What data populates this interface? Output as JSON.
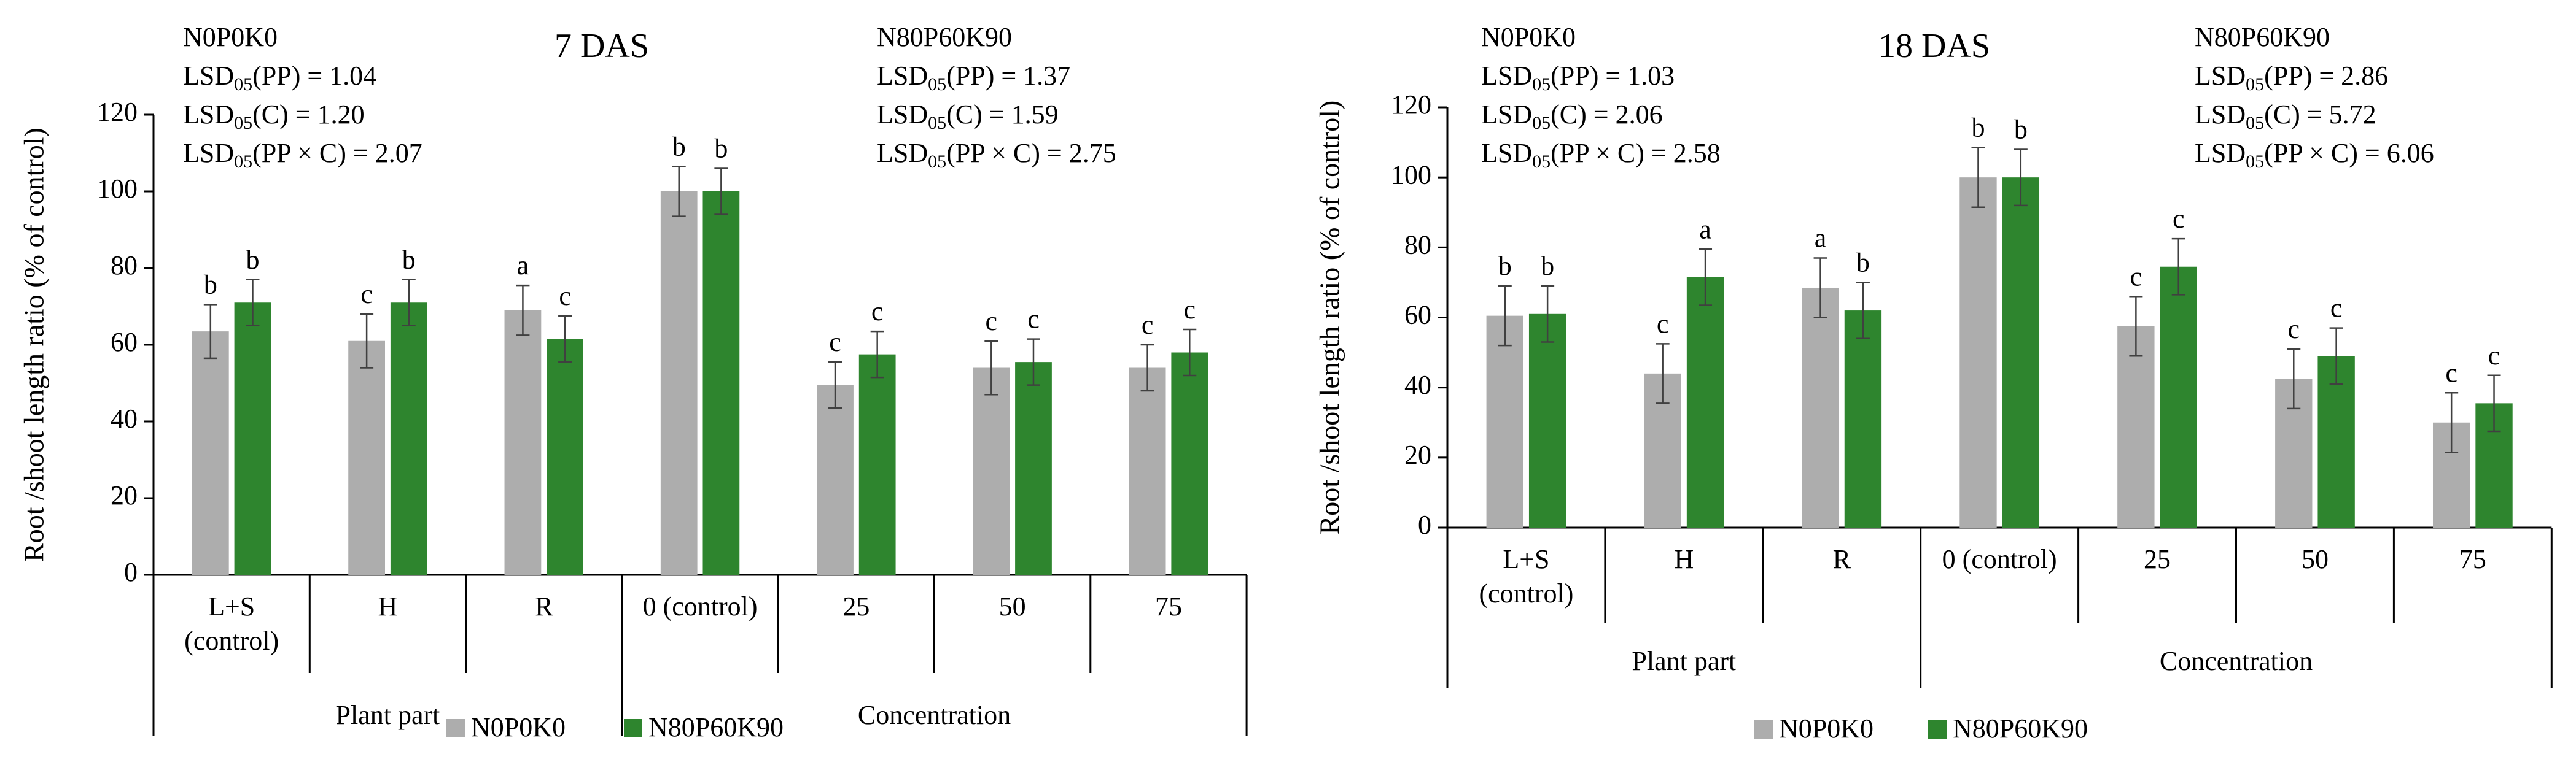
{
  "colors": {
    "series1": "#ADADAD",
    "series2": "#2E852E",
    "axis": "#000000",
    "error": "#404040"
  },
  "chart_data": [
    {
      "type": "bar",
      "title": "7 DAS",
      "xlabel": "",
      "ylabel": "Root /shoot length ratio (% of control)",
      "ylim": [
        0,
        120
      ],
      "yticks": [
        "0",
        "20",
        "40",
        "60",
        "80",
        "100",
        "120"
      ],
      "categories": [
        "L+S (control)",
        "H",
        "R",
        "0 (control)",
        "25",
        "50",
        "75"
      ],
      "groups": [
        {
          "label": "Plant part",
          "count": 3
        },
        {
          "label": "Concentration",
          "count": 4
        }
      ],
      "series": [
        {
          "name": "N0P0K0",
          "values": [
            63.5,
            61,
            69,
            100,
            49.5,
            54,
            54
          ],
          "errors": [
            7,
            7,
            6.5,
            6.5,
            6,
            7,
            6
          ],
          "letters": [
            "b",
            "c",
            "a",
            "b",
            "c",
            "c",
            "c"
          ]
        },
        {
          "name": "N80P60K90",
          "values": [
            71,
            71,
            61.5,
            100,
            57.5,
            55.5,
            58
          ],
          "errors": [
            6,
            6,
            6,
            6,
            6,
            6,
            6
          ],
          "letters": [
            "b",
            "b",
            "c",
            "b",
            "c",
            "c",
            "c"
          ]
        }
      ],
      "annotations": {
        "left": {
          "title": "N0P0K0",
          "lines": [
            [
              "LSD",
              "05",
              "(PP) = 1.04"
            ],
            [
              "LSD",
              "05",
              "(C) = 1.20"
            ],
            [
              "LSD",
              "05",
              "(PP × C) = 2.07"
            ]
          ]
        },
        "right": {
          "title": "N80P60K90",
          "lines": [
            [
              "LSD",
              "05",
              "(PP) = 1.37"
            ],
            [
              "LSD",
              "05",
              "(C) = 1.59"
            ],
            [
              "LSD",
              "05",
              "(PP × C) = 2.75"
            ]
          ]
        }
      },
      "legend": "bottom"
    },
    {
      "type": "bar",
      "title": "18 DAS",
      "xlabel": "",
      "ylabel": "Root /shoot length ratio (% of control)",
      "ylim": [
        0,
        120
      ],
      "yticks": [
        "0",
        "20",
        "40",
        "60",
        "80",
        "100",
        "120"
      ],
      "categories": [
        "L+S (control)",
        "H",
        "R",
        "0 (control)",
        "25",
        "50",
        "75"
      ],
      "groups": [
        {
          "label": "Plant part",
          "count": 3
        },
        {
          "label": "Concentration",
          "count": 4
        }
      ],
      "series": [
        {
          "name": "N0P0K0",
          "values": [
            60.5,
            44,
            68.5,
            100,
            57.5,
            42.5,
            30
          ],
          "errors": [
            8.5,
            8.5,
            8.5,
            8.5,
            8.5,
            8.5,
            8.5
          ],
          "letters": [
            "b",
            "c",
            "a",
            "b",
            "c",
            "c",
            "c"
          ]
        },
        {
          "name": "N80P60K90",
          "values": [
            61,
            71.5,
            62,
            100,
            74.5,
            49,
            35.5
          ],
          "errors": [
            8,
            8,
            8,
            8,
            8,
            8,
            8
          ],
          "letters": [
            "b",
            "a",
            "b",
            "b",
            "c",
            "c",
            "c"
          ]
        }
      ],
      "annotations": {
        "left": {
          "title": "N0P0K0",
          "lines": [
            [
              "LSD",
              "05",
              "(PP) = 1.03"
            ],
            [
              "LSD",
              "05",
              "(C) = 2.06"
            ],
            [
              "LSD",
              "05",
              "(PP × C) = 2.58"
            ]
          ]
        },
        "right": {
          "title": "N80P60K90",
          "lines": [
            [
              "LSD",
              "05",
              "(PP) = 2.86"
            ],
            [
              "LSD",
              "05",
              "(C) = 5.72"
            ],
            [
              "LSD",
              "05",
              "(PP × C) = 6.06"
            ]
          ]
        }
      },
      "legend": "bottom"
    }
  ]
}
